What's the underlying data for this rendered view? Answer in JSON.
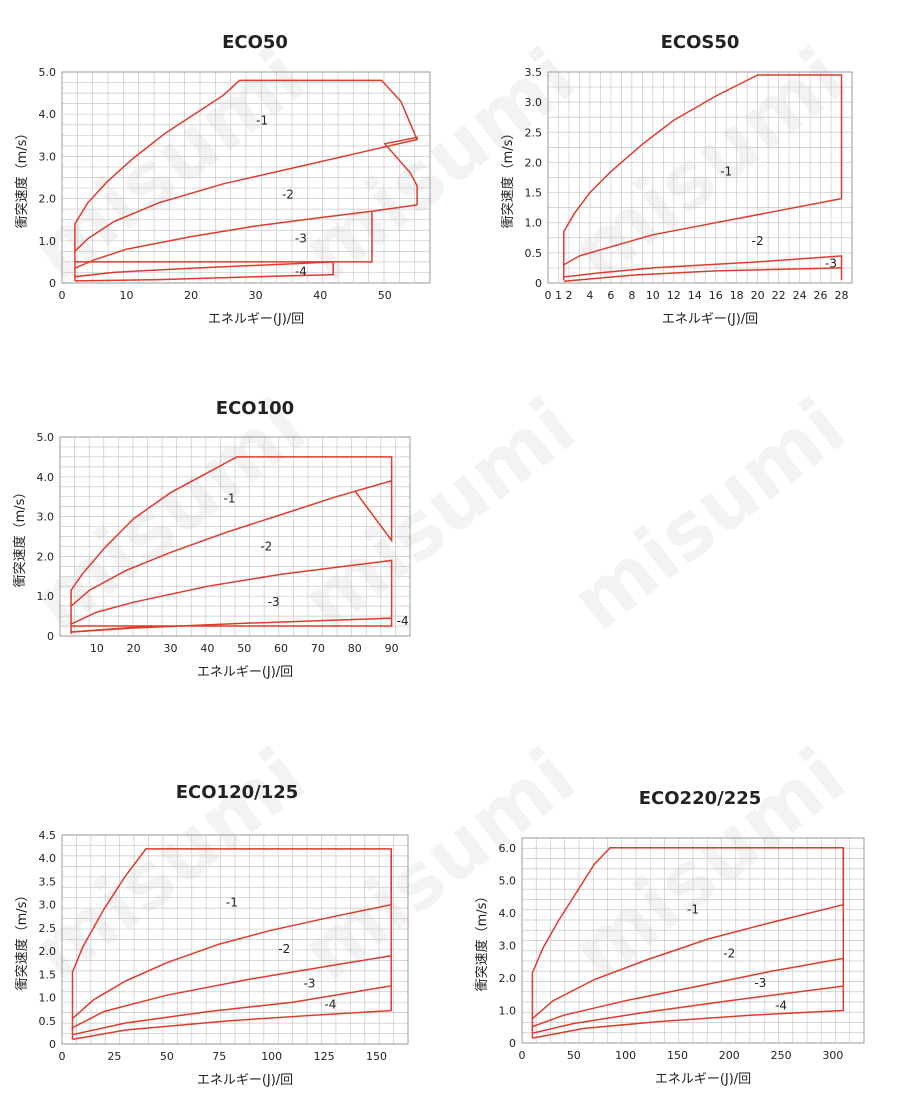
{
  "watermark": "misumi",
  "colors": {
    "curve": "#e03a2c",
    "grid": "#c8c8c8",
    "frame": "#9a9a9a",
    "text": "#222222"
  },
  "chart_data": [
    {
      "type": "line",
      "title": "ECO50",
      "xlabel": "エネルギー(J)/回",
      "ylabel": "衝突速度（m/s）",
      "xlim": [
        0,
        57
      ],
      "ylim": [
        0,
        5
      ],
      "x_ticks": [
        0,
        10,
        20,
        30,
        40,
        50
      ],
      "x_tick_labels": [
        "0",
        "10",
        "20",
        "30",
        "40",
        "50"
      ],
      "y_ticks": [
        0,
        1,
        2,
        3,
        4,
        5
      ],
      "y_tick_labels": [
        "0",
        "1.0",
        "2.0",
        "3.0",
        "4.0",
        "5.0"
      ],
      "grid": true,
      "series": [
        {
          "name": "-1",
          "label_at": [
            31,
            3.85
          ],
          "points": [
            [
              2,
              0.75
            ],
            [
              2,
              1.4
            ],
            [
              4,
              1.9
            ],
            [
              7,
              2.4
            ],
            [
              11,
              2.95
            ],
            [
              16,
              3.55
            ],
            [
              21,
              4.05
            ],
            [
              25,
              4.45
            ],
            [
              27.5,
              4.8
            ],
            [
              49.5,
              4.8
            ],
            [
              52.5,
              4.3
            ],
            [
              55,
              3.4
            ]
          ]
        },
        {
          "name": "-2",
          "label_at": [
            35,
            2.1
          ],
          "points": [
            [
              2,
              0.35
            ],
            [
              2,
              0.75
            ],
            [
              4,
              1.05
            ],
            [
              8,
              1.45
            ],
            [
              15,
              1.9
            ],
            [
              25,
              2.35
            ],
            [
              35,
              2.7
            ],
            [
              45,
              3.05
            ],
            [
              55,
              3.4
            ],
            [
              55,
              3.45
            ],
            [
              50,
              3.3
            ],
            [
              54,
              2.6
            ],
            [
              55,
              2.3
            ],
            [
              55,
              1.85
            ]
          ]
        },
        {
          "name": "-3",
          "label_at": [
            37,
            1.05
          ],
          "points": [
            [
              2,
              0.15
            ],
            [
              2,
              0.35
            ],
            [
              5,
              0.55
            ],
            [
              10,
              0.8
            ],
            [
              20,
              1.1
            ],
            [
              30,
              1.35
            ],
            [
              40,
              1.55
            ],
            [
              48,
              1.7
            ],
            [
              55,
              1.85
            ]
          ]
        },
        {
          "name": "-4",
          "label_at": [
            37,
            0.27
          ],
          "points": [
            [
              2,
              0.05
            ],
            [
              2,
              0.15
            ],
            [
              8,
              0.25
            ],
            [
              20,
              0.35
            ],
            [
              35,
              0.45
            ],
            [
              42,
              0.5
            ],
            [
              42,
              0.2
            ],
            [
              30,
              0.15
            ],
            [
              15,
              0.08
            ],
            [
              2,
              0.05
            ]
          ]
        },
        {
          "name": "",
          "points": [
            [
              48,
              1.7
            ],
            [
              48,
              0.5
            ],
            [
              2,
              0.5
            ]
          ]
        }
      ]
    },
    {
      "type": "line",
      "title": "ECOS50",
      "xlabel": "エネルギー(J)/回",
      "ylabel": "衝突速度（m/s）",
      "xlim": [
        0,
        29
      ],
      "ylim": [
        0,
        3.5
      ],
      "x_ticks": [
        0,
        1,
        2,
        4,
        6,
        8,
        10,
        12,
        14,
        16,
        18,
        20,
        22,
        24,
        26,
        28
      ],
      "x_tick_labels": [
        "0",
        "1",
        "2",
        "4",
        "6",
        "8",
        "10",
        "12",
        "14",
        "16",
        "18",
        "20",
        "22",
        "24",
        "26",
        "28"
      ],
      "y_ticks": [
        0,
        0.5,
        1,
        1.5,
        2,
        2.5,
        3,
        3.5
      ],
      "y_tick_labels": [
        "0",
        "0.5",
        "1.0",
        "1.5",
        "2.0",
        "2.5",
        "3.0",
        "3.5"
      ],
      "grid": true,
      "series": [
        {
          "name": "-1",
          "label_at": [
            17,
            1.85
          ],
          "points": [
            [
              1.5,
              0.3
            ],
            [
              1.5,
              0.85
            ],
            [
              2.5,
              1.15
            ],
            [
              4,
              1.5
            ],
            [
              6,
              1.85
            ],
            [
              9,
              2.3
            ],
            [
              12,
              2.7
            ],
            [
              16,
              3.1
            ],
            [
              20,
              3.45
            ],
            [
              28,
              3.45
            ],
            [
              28,
              1.4
            ]
          ]
        },
        {
          "name": "-2",
          "label_at": [
            20,
            0.7
          ],
          "points": [
            [
              1.5,
              0.1
            ],
            [
              1.5,
              0.3
            ],
            [
              3,
              0.45
            ],
            [
              6,
              0.6
            ],
            [
              10,
              0.8
            ],
            [
              16,
              1.0
            ],
            [
              22,
              1.2
            ],
            [
              28,
              1.4
            ]
          ]
        },
        {
          "name": "-3",
          "label_at": [
            27,
            0.32
          ],
          "points": [
            [
              1.5,
              0.05
            ],
            [
              1.5,
              0.1
            ],
            [
              5,
              0.17
            ],
            [
              10,
              0.25
            ],
            [
              20,
              0.35
            ],
            [
              28,
              0.45
            ],
            [
              28,
              0.05
            ]
          ]
        },
        {
          "name": "",
          "points": [
            [
              1.5,
              0.03
            ],
            [
              8,
              0.13
            ],
            [
              16,
              0.2
            ],
            [
              28,
              0.25
            ]
          ]
        }
      ]
    },
    {
      "type": "line",
      "title": "ECO100",
      "xlabel": "エネルギー(J)/回",
      "ylabel": "衝突速度（m/s）",
      "xlim": [
        0,
        95
      ],
      "ylim": [
        0,
        5
      ],
      "x_ticks": [
        10,
        20,
        30,
        40,
        50,
        60,
        70,
        80,
        90
      ],
      "x_tick_labels": [
        "10",
        "20",
        "30",
        "40",
        "50",
        "60",
        "70",
        "80",
        "90"
      ],
      "y_ticks": [
        0,
        1,
        2,
        3,
        4,
        5
      ],
      "y_tick_labels": [
        "0",
        "1.0",
        "2.0",
        "3.0",
        "4.0",
        "5.0"
      ],
      "grid": true,
      "series": [
        {
          "name": "-1",
          "label_at": [
            46,
            3.45
          ],
          "points": [
            [
              3,
              0.75
            ],
            [
              3,
              1.15
            ],
            [
              6,
              1.55
            ],
            [
              12,
              2.2
            ],
            [
              20,
              2.95
            ],
            [
              30,
              3.6
            ],
            [
              40,
              4.1
            ],
            [
              48,
              4.5
            ],
            [
              90,
              4.5
            ],
            [
              90,
              3.9
            ]
          ]
        },
        {
          "name": "-2",
          "label_at": [
            56,
            2.25
          ],
          "points": [
            [
              3,
              0.3
            ],
            [
              3,
              0.75
            ],
            [
              8,
              1.15
            ],
            [
              18,
              1.65
            ],
            [
              30,
              2.1
            ],
            [
              45,
              2.6
            ],
            [
              60,
              3.05
            ],
            [
              75,
              3.5
            ],
            [
              90,
              3.9
            ],
            [
              90,
              3.9
            ],
            [
              90,
              2.4
            ],
            [
              80,
              3.65
            ]
          ]
        },
        {
          "name": "-3",
          "label_at": [
            58,
            0.85
          ],
          "points": [
            [
              3,
              0.1
            ],
            [
              3,
              0.3
            ],
            [
              10,
              0.6
            ],
            [
              20,
              0.85
            ],
            [
              40,
              1.25
            ],
            [
              60,
              1.55
            ],
            [
              90,
              1.9
            ],
            [
              90,
              0.45
            ]
          ]
        },
        {
          "name": "-4",
          "label_at": [
            93,
            0.38
          ],
          "points": [
            [
              3,
              0.05
            ],
            [
              3,
              0.1
            ],
            [
              20,
              0.2
            ],
            [
              50,
              0.32
            ],
            [
              90,
              0.45
            ]
          ]
        },
        {
          "name": "",
          "points": [
            [
              3,
              0.25
            ],
            [
              90,
              0.25
            ],
            [
              90,
              0.45
            ]
          ]
        },
        {
          "name": "",
          "points": [
            [
              3,
              0.1
            ],
            [
              25,
              0.25
            ]
          ]
        }
      ]
    },
    {
      "type": "line",
      "title": "ECO120/125",
      "xlabel": "エネルギー(J)/回",
      "ylabel": "衝突速度（m/s）",
      "xlim": [
        0,
        165
      ],
      "ylim": [
        0,
        4.5
      ],
      "x_ticks": [
        0,
        25,
        50,
        75,
        100,
        125,
        150
      ],
      "x_tick_labels": [
        "0",
        "25",
        "50",
        "75",
        "100",
        "125",
        "150"
      ],
      "y_ticks": [
        0,
        0.5,
        1,
        1.5,
        2,
        2.5,
        3,
        3.5,
        4,
        4.5
      ],
      "y_tick_labels": [
        "0",
        "0.5",
        "1.0",
        "1.5",
        "2.0",
        "2.5",
        "3.0",
        "3.5",
        "4.0",
        "4.5"
      ],
      "grid": true,
      "series": [
        {
          "name": "-1",
          "label_at": [
            81,
            3.05
          ],
          "points": [
            [
              5,
              0.55
            ],
            [
              5,
              1.55
            ],
            [
              10,
              2.1
            ],
            [
              20,
              2.9
            ],
            [
              30,
              3.6
            ],
            [
              40,
              4.2
            ],
            [
              157,
              4.2
            ],
            [
              157,
              3.0
            ]
          ]
        },
        {
          "name": "-2",
          "label_at": [
            106,
            2.05
          ],
          "points": [
            [
              5,
              0.3
            ],
            [
              5,
              0.55
            ],
            [
              15,
              0.95
            ],
            [
              30,
              1.35
            ],
            [
              50,
              1.75
            ],
            [
              75,
              2.15
            ],
            [
              100,
              2.45
            ],
            [
              130,
              2.75
            ],
            [
              157,
              3.0
            ]
          ]
        },
        {
          "name": "-3",
          "label_at": [
            118,
            1.3
          ],
          "points": [
            [
              5,
              0.2
            ],
            [
              5,
              0.35
            ],
            [
              20,
              0.7
            ],
            [
              50,
              1.05
            ],
            [
              90,
              1.4
            ],
            [
              130,
              1.7
            ],
            [
              157,
              1.9
            ]
          ]
        },
        {
          "name": "-4",
          "label_at": [
            128,
            0.85
          ],
          "points": [
            [
              5,
              0.1
            ],
            [
              5,
              0.2
            ],
            [
              30,
              0.45
            ],
            [
              70,
              0.7
            ],
            [
              110,
              0.9
            ],
            [
              157,
              1.25
            ]
          ]
        },
        {
          "name": "",
          "points": [
            [
              5,
              0.1
            ],
            [
              30,
              0.3
            ],
            [
              80,
              0.5
            ],
            [
              120,
              0.62
            ],
            [
              157,
              0.72
            ],
            [
              157,
              4.2
            ]
          ]
        }
      ]
    },
    {
      "type": "line",
      "title": "ECO220/225",
      "xlabel": "エネルギー(J)/回",
      "ylabel": "衝突速度（m/s）",
      "xlim": [
        0,
        330
      ],
      "ylim": [
        0,
        6.3
      ],
      "x_ticks": [
        0,
        50,
        100,
        150,
        200,
        250,
        300
      ],
      "x_tick_labels": [
        "0",
        "50",
        "100",
        "150",
        "200",
        "250",
        "300"
      ],
      "y_ticks": [
        0,
        1,
        2,
        3,
        4,
        5,
        6
      ],
      "y_tick_labels": [
        "0",
        "1.0",
        "2.0",
        "3.0",
        "4.0",
        "5.0",
        "6.0"
      ],
      "grid": true,
      "series": [
        {
          "name": "-1",
          "label_at": [
            165,
            4.1
          ],
          "points": [
            [
              10,
              0.75
            ],
            [
              10,
              2.15
            ],
            [
              20,
              2.9
            ],
            [
              35,
              3.75
            ],
            [
              55,
              4.75
            ],
            [
              70,
              5.5
            ],
            [
              85,
              6.0
            ],
            [
              310,
              6.0
            ],
            [
              310,
              4.25
            ]
          ]
        },
        {
          "name": "-2",
          "label_at": [
            200,
            2.75
          ],
          "points": [
            [
              10,
              0.4
            ],
            [
              10,
              0.75
            ],
            [
              30,
              1.3
            ],
            [
              70,
              1.95
            ],
            [
              120,
              2.55
            ],
            [
              180,
              3.2
            ],
            [
              240,
              3.7
            ],
            [
              310,
              4.25
            ]
          ]
        },
        {
          "name": "-3",
          "label_at": [
            230,
            1.85
          ],
          "points": [
            [
              10,
              0.3
            ],
            [
              10,
              0.5
            ],
            [
              40,
              0.85
            ],
            [
              100,
              1.3
            ],
            [
              170,
              1.75
            ],
            [
              240,
              2.2
            ],
            [
              310,
              2.6
            ]
          ]
        },
        {
          "name": "-4",
          "label_at": [
            250,
            1.15
          ],
          "points": [
            [
              10,
              0.15
            ],
            [
              10,
              0.3
            ],
            [
              50,
              0.6
            ],
            [
              120,
              0.95
            ],
            [
              200,
              1.3
            ],
            [
              310,
              1.75
            ]
          ]
        },
        {
          "name": "",
          "points": [
            [
              10,
              0.15
            ],
            [
              60,
              0.45
            ],
            [
              130,
              0.65
            ],
            [
              220,
              0.85
            ],
            [
              310,
              1.0
            ],
            [
              310,
              6.0
            ]
          ]
        }
      ]
    }
  ]
}
